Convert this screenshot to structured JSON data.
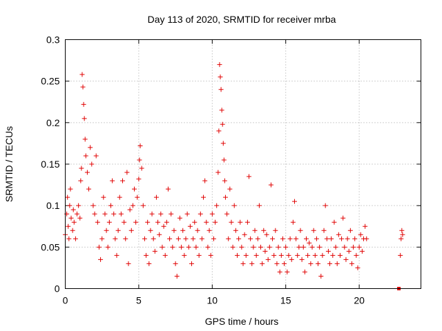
{
  "chart_data": {
    "type": "scatter",
    "title": "Day 113 of 2020, SRMTID for receiver mrba",
    "xlabel": "GPS time / hours",
    "ylabel": "SRMTID / TECUs",
    "xlim": [
      0,
      24.2
    ],
    "ylim": [
      0,
      0.3
    ],
    "xticks": [
      0,
      5,
      10,
      15,
      20
    ],
    "xtick_labels": [
      "0",
      "5",
      "10",
      "15",
      "20"
    ],
    "yticks": [
      0,
      0.05,
      0.1,
      0.15,
      0.2,
      0.25,
      0.3
    ],
    "ytick_labels": [
      "0",
      "0.05",
      "0.1",
      "0.15",
      "0.2",
      "0.25",
      "0.3"
    ],
    "grid": true,
    "marker": "plus",
    "color": "#e00000",
    "series": [
      {
        "name": "SRMTID",
        "points": [
          [
            0.0,
            0.065
          ],
          [
            0.1,
            0.09
          ],
          [
            0.15,
            0.11
          ],
          [
            0.2,
            0.075
          ],
          [
            0.25,
            0.06
          ],
          [
            0.3,
            0.1
          ],
          [
            0.35,
            0.12
          ],
          [
            0.4,
            0.085
          ],
          [
            0.5,
            0.07
          ],
          [
            0.55,
            0.095
          ],
          [
            0.6,
            0.08
          ],
          [
            0.7,
            0.06
          ],
          [
            0.8,
            0.09
          ],
          [
            0.9,
            0.1
          ],
          [
            1.0,
            0.085
          ],
          [
            1.05,
            0.13
          ],
          [
            1.1,
            0.145
          ],
          [
            1.15,
            0.258
          ],
          [
            1.2,
            0.243
          ],
          [
            1.25,
            0.222
          ],
          [
            1.3,
            0.205
          ],
          [
            1.35,
            0.18
          ],
          [
            1.4,
            0.16
          ],
          [
            1.5,
            0.14
          ],
          [
            1.6,
            0.12
          ],
          [
            1.7,
            0.17
          ],
          [
            1.8,
            0.15
          ],
          [
            1.9,
            0.1
          ],
          [
            2.0,
            0.09
          ],
          [
            2.1,
            0.16
          ],
          [
            2.2,
            0.08
          ],
          [
            2.3,
            0.05
          ],
          [
            2.4,
            0.035
          ],
          [
            2.5,
            0.06
          ],
          [
            2.6,
            0.11
          ],
          [
            2.7,
            0.09
          ],
          [
            2.8,
            0.07
          ],
          [
            2.9,
            0.05
          ],
          [
            3.0,
            0.08
          ],
          [
            3.1,
            0.1
          ],
          [
            3.2,
            0.13
          ],
          [
            3.3,
            0.09
          ],
          [
            3.4,
            0.06
          ],
          [
            3.5,
            0.04
          ],
          [
            3.6,
            0.07
          ],
          [
            3.7,
            0.11
          ],
          [
            3.8,
            0.09
          ],
          [
            3.9,
            0.13
          ],
          [
            4.0,
            0.08
          ],
          [
            4.1,
            0.06
          ],
          [
            4.2,
            0.14
          ],
          [
            4.3,
            0.03
          ],
          [
            4.4,
            0.095
          ],
          [
            4.5,
            0.07
          ],
          [
            4.6,
            0.1
          ],
          [
            4.7,
            0.12
          ],
          [
            4.8,
            0.08
          ],
          [
            4.9,
            0.11
          ],
          [
            5.0,
            0.132
          ],
          [
            5.05,
            0.155
          ],
          [
            5.1,
            0.172
          ],
          [
            5.2,
            0.145
          ],
          [
            5.3,
            0.1
          ],
          [
            5.4,
            0.06
          ],
          [
            5.5,
            0.04
          ],
          [
            5.6,
            0.08
          ],
          [
            5.7,
            0.03
          ],
          [
            5.8,
            0.07
          ],
          [
            5.9,
            0.09
          ],
          [
            6.0,
            0.06
          ],
          [
            6.1,
            0.045
          ],
          [
            6.2,
            0.11
          ],
          [
            6.3,
            0.08
          ],
          [
            6.4,
            0.065
          ],
          [
            6.5,
            0.09
          ],
          [
            6.6,
            0.05
          ],
          [
            6.7,
            0.075
          ],
          [
            6.8,
            0.04
          ],
          [
            6.9,
            0.08
          ],
          [
            7.0,
            0.12
          ],
          [
            7.1,
            0.06
          ],
          [
            7.2,
            0.09
          ],
          [
            7.3,
            0.05
          ],
          [
            7.4,
            0.07
          ],
          [
            7.5,
            0.03
          ],
          [
            7.6,
            0.015
          ],
          [
            7.7,
            0.06
          ],
          [
            7.8,
            0.085
          ],
          [
            7.9,
            0.05
          ],
          [
            8.0,
            0.07
          ],
          [
            8.1,
            0.04
          ],
          [
            8.2,
            0.06
          ],
          [
            8.3,
            0.09
          ],
          [
            8.4,
            0.05
          ],
          [
            8.5,
            0.075
          ],
          [
            8.6,
            0.03
          ],
          [
            8.7,
            0.06
          ],
          [
            8.8,
            0.08
          ],
          [
            8.9,
            0.05
          ],
          [
            9.0,
            0.07
          ],
          [
            9.1,
            0.04
          ],
          [
            9.2,
            0.09
          ],
          [
            9.3,
            0.06
          ],
          [
            9.4,
            0.11
          ],
          [
            9.5,
            0.13
          ],
          [
            9.6,
            0.08
          ],
          [
            9.7,
            0.05
          ],
          [
            9.8,
            0.07
          ],
          [
            9.9,
            0.04
          ],
          [
            10.0,
            0.09
          ],
          [
            10.1,
            0.06
          ],
          [
            10.2,
            0.08
          ],
          [
            10.3,
            0.1
          ],
          [
            10.4,
            0.14
          ],
          [
            10.45,
            0.19
          ],
          [
            10.5,
            0.27
          ],
          [
            10.55,
            0.255
          ],
          [
            10.6,
            0.24
          ],
          [
            10.65,
            0.215
          ],
          [
            10.7,
            0.198
          ],
          [
            10.75,
            0.175
          ],
          [
            10.8,
            0.155
          ],
          [
            10.85,
            0.13
          ],
          [
            10.9,
            0.11
          ],
          [
            11.0,
            0.09
          ],
          [
            11.1,
            0.06
          ],
          [
            11.2,
            0.12
          ],
          [
            11.3,
            0.08
          ],
          [
            11.4,
            0.05
          ],
          [
            11.5,
            0.1
          ],
          [
            11.6,
            0.07
          ],
          [
            11.7,
            0.04
          ],
          [
            11.8,
            0.06
          ],
          [
            11.9,
            0.08
          ],
          [
            12.0,
            0.05
          ],
          [
            12.1,
            0.03
          ],
          [
            12.2,
            0.065
          ],
          [
            12.3,
            0.04
          ],
          [
            12.4,
            0.08
          ],
          [
            12.5,
            0.135
          ],
          [
            12.6,
            0.06
          ],
          [
            12.7,
            0.03
          ],
          [
            12.8,
            0.05
          ],
          [
            12.9,
            0.07
          ],
          [
            13.0,
            0.04
          ],
          [
            13.1,
            0.06
          ],
          [
            13.2,
            0.1
          ],
          [
            13.3,
            0.05
          ],
          [
            13.4,
            0.03
          ],
          [
            13.5,
            0.07
          ],
          [
            13.6,
            0.045
          ],
          [
            13.7,
            0.065
          ],
          [
            13.8,
            0.035
          ],
          [
            13.9,
            0.05
          ],
          [
            14.0,
            0.125
          ],
          [
            14.1,
            0.06
          ],
          [
            14.2,
            0.04
          ],
          [
            14.3,
            0.07
          ],
          [
            14.4,
            0.03
          ],
          [
            14.5,
            0.05
          ],
          [
            14.6,
            0.02
          ],
          [
            14.7,
            0.04
          ],
          [
            14.8,
            0.06
          ],
          [
            14.9,
            0.03
          ],
          [
            15.0,
            0.05
          ],
          [
            15.1,
            0.02
          ],
          [
            15.2,
            0.04
          ],
          [
            15.3,
            0.06
          ],
          [
            15.4,
            0.035
          ],
          [
            15.5,
            0.08
          ],
          [
            15.6,
            0.105
          ],
          [
            15.7,
            0.06
          ],
          [
            15.8,
            0.04
          ],
          [
            15.9,
            0.05
          ],
          [
            16.0,
            0.07
          ],
          [
            16.1,
            0.035
          ],
          [
            16.2,
            0.05
          ],
          [
            16.3,
            0.02
          ],
          [
            16.4,
            0.06
          ],
          [
            16.5,
            0.04
          ],
          [
            16.6,
            0.055
          ],
          [
            16.7,
            0.03
          ],
          [
            16.8,
            0.05
          ],
          [
            16.9,
            0.07
          ],
          [
            17.0,
            0.04
          ],
          [
            17.1,
            0.06
          ],
          [
            17.2,
            0.03
          ],
          [
            17.3,
            0.05
          ],
          [
            17.4,
            0.015
          ],
          [
            17.5,
            0.04
          ],
          [
            17.6,
            0.07
          ],
          [
            17.7,
            0.1
          ],
          [
            17.8,
            0.06
          ],
          [
            17.9,
            0.045
          ],
          [
            18.0,
            0.03
          ],
          [
            18.1,
            0.06
          ],
          [
            18.2,
            0.04
          ],
          [
            18.3,
            0.08
          ],
          [
            18.4,
            0.05
          ],
          [
            18.5,
            0.03
          ],
          [
            18.6,
            0.065
          ],
          [
            18.7,
            0.04
          ],
          [
            18.8,
            0.06
          ],
          [
            18.9,
            0.085
          ],
          [
            19.0,
            0.05
          ],
          [
            19.1,
            0.035
          ],
          [
            19.2,
            0.06
          ],
          [
            19.3,
            0.045
          ],
          [
            19.4,
            0.07
          ],
          [
            19.5,
            0.03
          ],
          [
            19.6,
            0.05
          ],
          [
            19.7,
            0.06
          ],
          [
            19.8,
            0.04
          ],
          [
            19.9,
            0.025
          ],
          [
            20.0,
            0.05
          ],
          [
            20.1,
            0.065
          ],
          [
            20.2,
            0.045
          ],
          [
            20.3,
            0.06
          ],
          [
            20.4,
            0.075
          ],
          [
            20.5,
            0.06
          ],
          [
            22.7,
            0.0
          ],
          [
            22.8,
            0.04
          ],
          [
            22.85,
            0.06
          ],
          [
            22.9,
            0.07
          ],
          [
            22.95,
            0.065
          ]
        ]
      }
    ]
  }
}
